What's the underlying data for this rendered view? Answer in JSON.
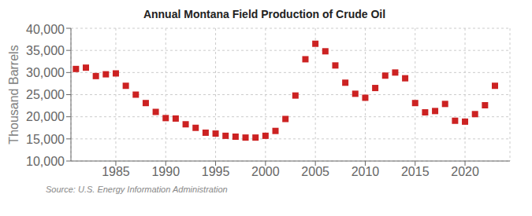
{
  "chart_data": {
    "type": "scatter",
    "title": "Annual Montana Field Production of Crude Oil",
    "y_label": "Thousand Barrels",
    "annotation": "Source: U.S. Energy Information Administration",
    "x": [
      1981,
      1982,
      1983,
      1984,
      1985,
      1986,
      1987,
      1988,
      1989,
      1990,
      1991,
      1992,
      1993,
      1994,
      1995,
      1996,
      1997,
      1998,
      1999,
      2000,
      2001,
      2002,
      2003,
      2004,
      2005,
      2006,
      2007,
      2008,
      2009,
      2010,
      2011,
      2012,
      2013,
      2014,
      2015,
      2016,
      2017,
      2018,
      2019,
      2020,
      2021,
      2022,
      2023
    ],
    "values": [
      30800,
      31100,
      29200,
      29600,
      29800,
      27000,
      25000,
      23100,
      21100,
      19700,
      19600,
      18300,
      17500,
      16400,
      16200,
      15700,
      15500,
      15300,
      15300,
      15700,
      16800,
      19500,
      24800,
      33000,
      36500,
      34800,
      31600,
      27700,
      25200,
      24300,
      26500,
      29300,
      30000,
      28700,
      23100,
      21000,
      21300,
      22900,
      19100,
      18900,
      20600,
      22600,
      27000
    ],
    "color": "#cc2222",
    "marker": "square",
    "xlim": [
      1980.5,
      2024.5
    ],
    "ylim": [
      10000,
      40000
    ],
    "xticks": [
      1985,
      1990,
      1995,
      2000,
      2005,
      2010,
      2015,
      2020
    ],
    "yticks": [
      {
        "value": 10000,
        "label": "10,000"
      },
      {
        "value": 15000,
        "label": "15,000"
      },
      {
        "value": 20000,
        "label": "20,000"
      },
      {
        "value": 25000,
        "label": "25,000"
      },
      {
        "value": 30000,
        "label": "30,000"
      },
      {
        "value": 35000,
        "label": "35,000"
      },
      {
        "value": 40000,
        "label": "40,000"
      }
    ],
    "grid": true
  }
}
